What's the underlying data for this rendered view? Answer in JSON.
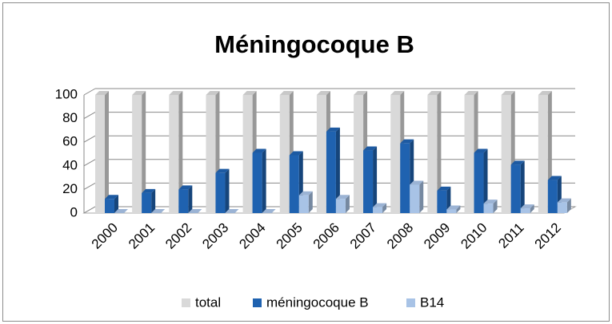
{
  "chart_data": {
    "type": "bar3d",
    "title": "Méningocoque B",
    "categories": [
      "2000",
      "2001",
      "2002",
      "2003",
      "2004",
      "2005",
      "2006",
      "2007",
      "2008",
      "2009",
      "2010",
      "2011",
      "2012"
    ],
    "series": [
      {
        "name": "total",
        "color": "#d9d9d9",
        "values": [
          100,
          100,
          100,
          100,
          100,
          100,
          100,
          100,
          100,
          100,
          100,
          100,
          100
        ]
      },
      {
        "name": "méningocoque B",
        "color": "#1f62b0",
        "values": [
          12,
          17,
          20,
          34,
          51,
          49,
          69,
          53,
          59,
          19,
          51,
          41,
          28
        ]
      },
      {
        "name": "B14",
        "color": "#a8c3e6",
        "values": [
          0,
          0,
          0,
          0,
          0,
          15,
          12,
          5,
          24,
          3,
          8,
          4,
          9
        ]
      }
    ],
    "ylim": [
      0,
      100
    ],
    "yticks": [
      0,
      20,
      40,
      60,
      80,
      100
    ],
    "grid": true,
    "legend": "bottom"
  }
}
